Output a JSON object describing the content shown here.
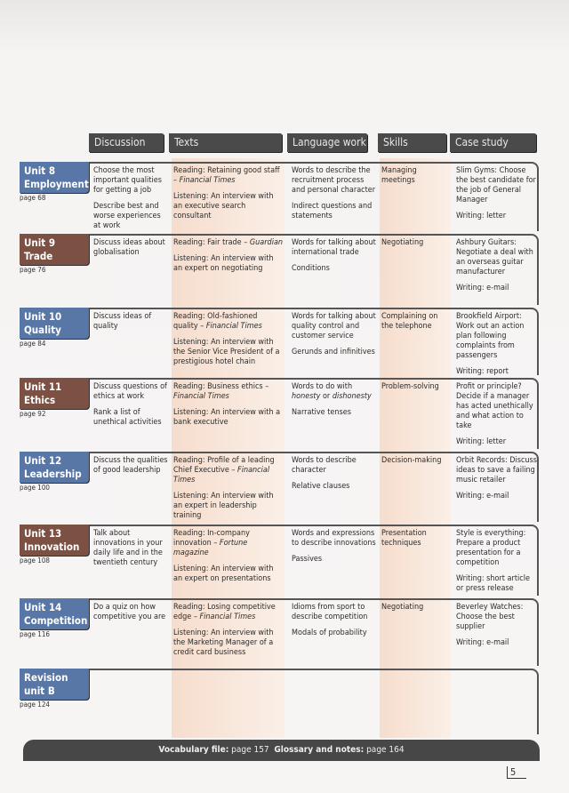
{
  "headers": [
    "Discussion",
    "Texts",
    "Language work",
    "Skills",
    "Case study"
  ],
  "colors": {
    "unit_blue": "#5877a6",
    "unit_brown": "#7c5042",
    "header": "#4a4a4a",
    "shade": "#f6d9c6"
  },
  "units": [
    {
      "title": [
        "Unit 8",
        "Employment"
      ],
      "page": "page 68",
      "color": "blue",
      "discussion": [
        [
          {
            "t": "Choose the most important qualities for getting a job"
          }
        ],
        [
          {
            "t": "Describe best and worse experiences at work"
          }
        ]
      ],
      "texts": [
        [
          {
            "t": "Reading: Retaining good staff – "
          },
          {
            "t": "Financial Times",
            "i": true
          }
        ],
        [
          {
            "t": "Listening: An interview with an executive search consultant"
          }
        ]
      ],
      "language": [
        [
          {
            "t": "Words to describe the recruitment process and personal character"
          }
        ],
        [
          {
            "t": "Indirect questions and statements"
          }
        ]
      ],
      "skills": [
        [
          {
            "t": "Managing meetings"
          }
        ]
      ],
      "case": [
        [
          {
            "t": "Slim Gyms: Choose the best candidate for the job of General Manager"
          }
        ],
        [
          {
            "t": "Writing: letter"
          }
        ]
      ]
    },
    {
      "title": [
        "Unit 9",
        "Trade"
      ],
      "page": "page 76",
      "color": "brown",
      "discussion": [
        [
          {
            "t": "Discuss ideas about globalisation"
          }
        ]
      ],
      "texts": [
        [
          {
            "t": "Reading: Fair trade – "
          },
          {
            "t": "Guardian",
            "i": true
          }
        ],
        [
          {
            "t": "Listening: An interview with an expert on negotiating"
          }
        ]
      ],
      "language": [
        [
          {
            "t": "Words for talking about international trade"
          }
        ],
        [
          {
            "t": "Conditions"
          }
        ]
      ],
      "skills": [
        [
          {
            "t": "Negotiating"
          }
        ]
      ],
      "case": [
        [
          {
            "t": "Ashbury Guitars: Negotiate a deal with an overseas guitar manufacturer"
          }
        ],
        [
          {
            "t": "Writing: e-mail"
          }
        ]
      ]
    },
    {
      "title": [
        "Unit 10",
        "Quality"
      ],
      "page": "page 84",
      "color": "blue",
      "discussion": [
        [
          {
            "t": "Discuss ideas of quality"
          }
        ]
      ],
      "texts": [
        [
          {
            "t": "Reading: Old-fashioned quality – "
          },
          {
            "t": "Financial Times",
            "i": true
          }
        ],
        [
          {
            "t": "Listening: An interview with the Senior Vice President of a prestigious hotel chain"
          }
        ]
      ],
      "language": [
        [
          {
            "t": "Words for talking about quality control and customer service"
          }
        ],
        [
          {
            "t": "Gerunds and infinitives"
          }
        ]
      ],
      "skills": [
        [
          {
            "t": "Complaining on the telephone"
          }
        ]
      ],
      "case": [
        [
          {
            "t": "Brookfield Airport: Work out an action plan following complaints from passengers"
          }
        ],
        [
          {
            "t": "Writing: report"
          }
        ]
      ]
    },
    {
      "title": [
        "Unit 11",
        "Ethics"
      ],
      "page": "page 92",
      "color": "brown",
      "discussion": [
        [
          {
            "t": "Discuss questions of ethics at work"
          }
        ],
        [
          {
            "t": "Rank a list of unethical activities"
          }
        ]
      ],
      "texts": [
        [
          {
            "t": "Reading: Business ethics – "
          },
          {
            "t": "Financial Times",
            "i": true
          }
        ],
        [
          {
            "t": "Listening: An interview with a bank executive"
          }
        ]
      ],
      "language": [
        [
          {
            "t": "Words to do with "
          },
          {
            "t": "honesty",
            "i": true
          },
          {
            "t": " or "
          },
          {
            "t": "dishonesty",
            "i": true
          }
        ],
        [
          {
            "t": "Narrative tenses"
          }
        ]
      ],
      "skills": [
        [
          {
            "t": "Problem-solving"
          }
        ]
      ],
      "case": [
        [
          {
            "t": "Profit or principle? Decide if a manager has acted unethically and what action to take"
          }
        ],
        [
          {
            "t": "Writing: letter"
          }
        ]
      ]
    },
    {
      "title": [
        "Unit 12",
        "Leadership"
      ],
      "page": "page 100",
      "color": "blue",
      "discussion": [
        [
          {
            "t": "Discuss the qualities of good leadership"
          }
        ]
      ],
      "texts": [
        [
          {
            "t": "Reading: Profile of a leading Chief Executive – "
          },
          {
            "t": "Financial Times",
            "i": true
          }
        ],
        [
          {
            "t": "Listening: An interview with an expert in leadership training"
          }
        ]
      ],
      "language": [
        [
          {
            "t": "Words to describe character"
          }
        ],
        [
          {
            "t": "Relative clauses"
          }
        ]
      ],
      "skills": [
        [
          {
            "t": "Decision-making"
          }
        ]
      ],
      "case": [
        [
          {
            "t": "Orbit Records: Discuss ideas to save a failing music retailer"
          }
        ],
        [
          {
            "t": "Writing: e-mail"
          }
        ]
      ]
    },
    {
      "title": [
        "Unit 13",
        "Innovation"
      ],
      "page": "page 108",
      "color": "brown",
      "discussion": [
        [
          {
            "t": "Talk about innovations in your daily life and in the twentieth century"
          }
        ]
      ],
      "texts": [
        [
          {
            "t": "Reading: In-company innovation – "
          },
          {
            "t": "Fortune magazine",
            "i": true
          }
        ],
        [
          {
            "t": "Listening: An interview with an expert on presentations"
          }
        ]
      ],
      "language": [
        [
          {
            "t": "Words and expressions to describe innovations"
          }
        ],
        [
          {
            "t": "Passives"
          }
        ]
      ],
      "skills": [
        [
          {
            "t": "Presentation techniques"
          }
        ]
      ],
      "case": [
        [
          {
            "t": "Style is everything: Prepare a product presentation for a competition"
          }
        ],
        [
          {
            "t": "Writing: short article or press release"
          }
        ]
      ]
    },
    {
      "title": [
        "Unit 14",
        "Competition"
      ],
      "page": "page 116",
      "color": "blue",
      "discussion": [
        [
          {
            "t": "Do a quiz on how competitive you are"
          }
        ]
      ],
      "texts": [
        [
          {
            "t": "Reading: Losing competitive edge – "
          },
          {
            "t": "Financial Times",
            "i": true
          }
        ],
        [
          {
            "t": "Listening: An interview with the Marketing Manager of a credit card business"
          }
        ]
      ],
      "language": [
        [
          {
            "t": "Idioms from sport to describe competition"
          }
        ],
        [
          {
            "t": "Modals of probability"
          }
        ]
      ],
      "skills": [
        [
          {
            "t": "Negotiating"
          }
        ]
      ],
      "case": [
        [
          {
            "t": "Beverley Watches: Choose the best supplier"
          }
        ],
        [
          {
            "t": "Writing: e-mail"
          }
        ]
      ]
    },
    {
      "title": [
        "Revision",
        "unit B"
      ],
      "page": "page 124",
      "color": "blue",
      "discussion": [],
      "texts": [],
      "language": [],
      "skills": [],
      "case": []
    }
  ],
  "footer": {
    "vocab_label": "Vocabulary file:",
    "vocab_page": "page 157",
    "glossary_label": "Glossary and notes:",
    "glossary_page": "page 164"
  },
  "page_number": "5"
}
